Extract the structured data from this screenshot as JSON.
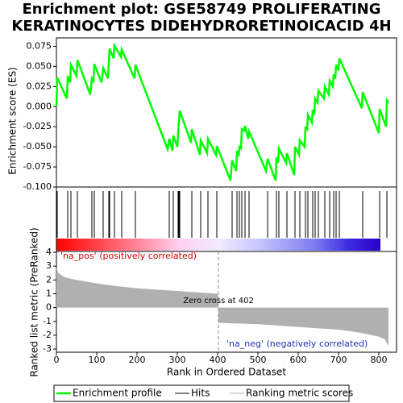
{
  "chart_data": {
    "type": "enrichment",
    "title": [
      "Enrichment plot: GSE58749 PROLIFERATING",
      "KERATINOCYTES DIDEHYDRORETINOICACID 4H"
    ],
    "xlabel": "Rank in Ordered Dataset",
    "xlim": [
      0,
      844
    ],
    "xticks": [
      0,
      100,
      200,
      300,
      400,
      500,
      600,
      700,
      800
    ],
    "es": {
      "name": "Enrichment profile",
      "color": "#00ff00",
      "ylabel": "Enrichment score (ES)",
      "ylim": [
        -0.1,
        0.0855
      ],
      "yticks": [
        0.075,
        {
          "value": 0.05,
          "label": "0.050"
        },
        0.025,
        {
          "value": 0,
          "label": "0.000"
        },
        -0.025,
        {
          "value": -0.05,
          "label": "-0.050"
        },
        -0.075,
        {
          "value": -0.1,
          "label": "-0.100"
        }
      ],
      "x": [
        0,
        2,
        26,
        28,
        34,
        36,
        50,
        52,
        84,
        88,
        92,
        94,
        112,
        116,
        128,
        130,
        132,
        142,
        144,
        160,
        162,
        194,
        196,
        276,
        280,
        288,
        290,
        300,
        302,
        304,
        306,
        334,
        336,
        356,
        358,
        374,
        376,
        396,
        398,
        432,
        436,
        446,
        448,
        452,
        454,
        458,
        460,
        466,
        468,
        476,
        478,
        520,
        524,
        544,
        546,
        550,
        552,
        570,
        572,
        590,
        592,
        602,
        604,
        616,
        618,
        622,
        624,
        634,
        636,
        640,
        642,
        648,
        650,
        664,
        666,
        676,
        678,
        686,
        688,
        692,
        694,
        700,
        702,
        758,
        760,
        800,
        802,
        818,
        820,
        824
      ],
      "values": [
        0,
        0.036,
        0.01,
        0.038,
        0.03,
        0.052,
        0.038,
        0.058,
        0.015,
        0.035,
        0.032,
        0.053,
        0.03,
        0.048,
        0.035,
        0.055,
        0.072,
        0.06,
        0.076,
        0.062,
        0.071,
        0.035,
        0.052,
        -0.053,
        -0.04,
        -0.055,
        -0.036,
        -0.05,
        -0.033,
        -0.019,
        -0.005,
        -0.045,
        -0.028,
        -0.06,
        -0.042,
        -0.058,
        -0.04,
        -0.06,
        -0.049,
        -0.092,
        -0.067,
        -0.08,
        -0.055,
        -0.062,
        -0.05,
        -0.052,
        -0.028,
        -0.03,
        -0.024,
        -0.04,
        -0.031,
        -0.08,
        -0.065,
        -0.092,
        -0.063,
        -0.07,
        -0.052,
        -0.07,
        -0.058,
        -0.085,
        -0.05,
        -0.06,
        -0.042,
        -0.05,
        -0.025,
        -0.03,
        -0.01,
        -0.02,
        -0.004,
        -0.01,
        0.01,
        0.005,
        0.02,
        0.01,
        0.025,
        0.015,
        0.032,
        0.025,
        0.04,
        0.035,
        0.052,
        0.045,
        0.06,
        -0.002,
        0.018,
        -0.033,
        -0.003,
        -0.025,
        0.008,
        0.005
      ]
    },
    "hits": {
      "name": "Hits",
      "color": "#000000",
      "x": [
        2,
        28,
        36,
        52,
        88,
        94,
        116,
        130,
        132,
        144,
        162,
        196,
        280,
        290,
        302,
        304,
        306,
        336,
        358,
        376,
        398,
        436,
        448,
        454,
        460,
        468,
        478,
        524,
        546,
        552,
        572,
        592,
        604,
        618,
        624,
        636,
        642,
        650,
        666,
        678,
        688,
        694,
        702,
        760,
        802,
        820
      ]
    },
    "metric": {
      "name": "Ranking metric scores",
      "color": "#b0b0b0",
      "ylabel": "Ranked list metric (PreRanked)",
      "ylim": [
        -3.23,
        4.06
      ],
      "yticks": [
        4,
        3,
        2,
        1,
        0,
        -1,
        -2,
        -3
      ],
      "x": [
        0,
        5,
        20,
        50,
        100,
        150,
        200,
        250,
        300,
        350,
        401,
        402,
        450,
        500,
        550,
        600,
        650,
        700,
        750,
        800,
        815,
        824
      ],
      "values": [
        2.9,
        2.5,
        2.2,
        2.0,
        1.75,
        1.55,
        1.4,
        1.3,
        1.2,
        1.1,
        1.0,
        -1.1,
        -1.15,
        -1.2,
        -1.3,
        -1.4,
        -1.5,
        -1.6,
        -1.8,
        -2.1,
        -2.3,
        -2.8
      ],
      "pos_label": "'na_pos' (positively correlated)",
      "neg_label": "'na_neg' (negatively correlated)",
      "zero_cross": 402,
      "zero_cross_label": "Zero cross at 402"
    }
  }
}
